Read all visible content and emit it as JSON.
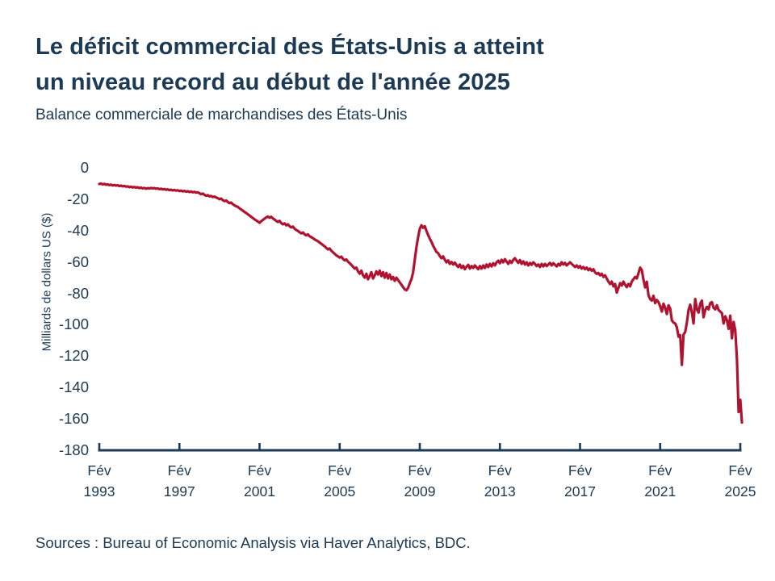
{
  "page": {
    "title_line1": "Le déficit commercial des États-Unis a atteint",
    "title_line2": "un niveau record au début de l'année 2025",
    "subtitle": "Balance commerciale de marchandises des États-Unis",
    "source": "Sources : Bureau of Economic Analysis via Haver Analytics, BDC."
  },
  "colors": {
    "text_navy": "#1c3a54",
    "line_red": "#b01330",
    "axis_navy": "#1c3a54",
    "background": "#ffffff"
  },
  "chart_data": {
    "type": "line",
    "title": "Le déficit commercial des États-Unis a atteint un niveau record au début de l'année 2025",
    "subtitle": "Balance commerciale de marchandises des États-Unis",
    "xlabel": "",
    "ylabel": "Milliards de dollars US ($)",
    "ylim": [
      -180,
      0
    ],
    "y_ticks": [
      0,
      -20,
      -40,
      -60,
      -80,
      -100,
      -120,
      -140,
      -160,
      -180
    ],
    "x_tick_month_label": "Fév",
    "x_tick_years": [
      1993,
      1997,
      2001,
      2005,
      2009,
      2013,
      2017,
      2021,
      2025
    ],
    "grid": false,
    "legend": false,
    "series": [
      {
        "name": "Balance commerciale de marchandises des États-Unis",
        "unit": "milliards de dollars US",
        "start": "1993-02",
        "interval": "monthly",
        "values": [
          -10.3,
          -10.0,
          -10.6,
          -10.2,
          -10.8,
          -10.5,
          -11.0,
          -10.7,
          -11.2,
          -10.9,
          -11.3,
          -11.1,
          -11.6,
          -11.3,
          -11.8,
          -11.5,
          -12.0,
          -11.8,
          -12.3,
          -12.0,
          -12.5,
          -12.2,
          -12.6,
          -12.4,
          -12.9,
          -12.6,
          -13.1,
          -12.8,
          -13.3,
          -12.9,
          -13.2,
          -12.8,
          -13.1,
          -12.9,
          -13.3,
          -13.1,
          -13.6,
          -13.3,
          -13.8,
          -13.5,
          -14.0,
          -13.7,
          -14.2,
          -13.9,
          -14.4,
          -14.1,
          -14.5,
          -14.3,
          -14.8,
          -14.5,
          -15.0,
          -14.7,
          -15.2,
          -14.9,
          -15.4,
          -15.1,
          -15.6,
          -15.3,
          -15.8,
          -15.6,
          -16.2,
          -16.8,
          -16.4,
          -17.2,
          -17.8,
          -17.4,
          -18.2,
          -17.9,
          -18.6,
          -18.3,
          -18.9,
          -19.3,
          -20.0,
          -19.6,
          -20.6,
          -21.2,
          -20.8,
          -21.8,
          -22.5,
          -22.1,
          -23.2,
          -23.9,
          -24.5,
          -24.9,
          -25.8,
          -26.5,
          -27.3,
          -28.1,
          -28.8,
          -29.6,
          -30.4,
          -31.2,
          -32.0,
          -32.8,
          -33.5,
          -34.2,
          -35.0,
          -34.0,
          -33.2,
          -32.4,
          -31.6,
          -31.0,
          -31.8,
          -31.2,
          -32.2,
          -33.0,
          -33.8,
          -34.5,
          -33.8,
          -35.2,
          -36.0,
          -35.4,
          -36.6,
          -36.0,
          -37.2,
          -38.0,
          -37.4,
          -38.8,
          -39.6,
          -40.2,
          -41.0,
          -41.8,
          -41.2,
          -42.4,
          -43.0,
          -42.4,
          -43.6,
          -44.2,
          -44.8,
          -45.6,
          -46.2,
          -46.8,
          -47.6,
          -48.4,
          -49.2,
          -50.0,
          -51.0,
          -52.0,
          -51.4,
          -52.8,
          -53.8,
          -54.8,
          -55.8,
          -56.4,
          -57.2,
          -56.6,
          -58.0,
          -59.0,
          -58.4,
          -59.8,
          -60.8,
          -61.8,
          -63.0,
          -64.2,
          -63.6,
          -66.0,
          -67.5,
          -65.5,
          -68.5,
          -70.0,
          -67.5,
          -71.0,
          -69.0,
          -66.5,
          -70.5,
          -68.5,
          -66.0,
          -68.0,
          -65.5,
          -69.0,
          -66.5,
          -70.0,
          -67.0,
          -70.5,
          -68.0,
          -71.0,
          -69.5,
          -72.0,
          -70.0,
          -71.5,
          -73.0,
          -74.5,
          -76.0,
          -77.5,
          -78.0,
          -76.5,
          -73.5,
          -71.0,
          -66.5,
          -58.5,
          -50.5,
          -44.2,
          -38.8,
          -36.6,
          -38.2,
          -37.2,
          -40.2,
          -42.8,
          -45.2,
          -47.2,
          -49.6,
          -51.6,
          -53.6,
          -54.4,
          -56.2,
          -57.6,
          -56.4,
          -58.6,
          -60.2,
          -59.0,
          -61.2,
          -60.0,
          -61.6,
          -60.4,
          -62.0,
          -63.2,
          -61.6,
          -63.8,
          -62.4,
          -64.6,
          -63.0,
          -61.8,
          -64.2,
          -62.6,
          -63.8,
          -62.2,
          -63.4,
          -64.6,
          -62.6,
          -64.2,
          -62.2,
          -63.8,
          -61.6,
          -63.2,
          -61.2,
          -62.8,
          -60.8,
          -62.2,
          -60.2,
          -59.2,
          -60.8,
          -58.6,
          -60.2,
          -58.2,
          -59.8,
          -61.2,
          -59.2,
          -60.6,
          -58.6,
          -57.6,
          -59.2,
          -60.6,
          -58.8,
          -61.2,
          -59.6,
          -61.6,
          -60.2,
          -62.2,
          -60.6,
          -61.8,
          -60.2,
          -61.2,
          -62.6,
          -61.6,
          -63.2,
          -61.2,
          -62.8,
          -61.2,
          -62.6,
          -61.6,
          -60.6,
          -62.2,
          -60.8,
          -61.8,
          -62.8,
          -61.2,
          -62.2,
          -60.2,
          -61.6,
          -60.6,
          -62.2,
          -61.2,
          -60.2,
          -61.2,
          -62.2,
          -63.2,
          -62.2,
          -63.6,
          -62.6,
          -64.2,
          -63.2,
          -64.6,
          -63.6,
          -65.2,
          -64.2,
          -65.6,
          -64.6,
          -66.6,
          -67.6,
          -67.0,
          -68.5,
          -67.5,
          -69.5,
          -68.5,
          -70.5,
          -72.5,
          -74.0,
          -72.5,
          -75.5,
          -74.0,
          -79.5,
          -76.5,
          -73.5,
          -75.0,
          -72.5,
          -74.5,
          -76.0,
          -74.0,
          -75.5,
          -72.5,
          -71.0,
          -69.5,
          -70.5,
          -67.2,
          -63.6,
          -65.2,
          -71.2,
          -76.2,
          -72.6,
          -81.2,
          -83.6,
          -84.6,
          -81.6,
          -86.2,
          -84.2,
          -85.6,
          -88.2,
          -91.6,
          -86.6,
          -89.2,
          -93.2,
          -87.6,
          -89.6,
          -97.2,
          -98.6,
          -99.2,
          -101.6,
          -107.6,
          -106.6,
          -125.6,
          -106.2,
          -104.6,
          -98.6,
          -90.6,
          -87.2,
          -92.2,
          -99.2,
          -83.6,
          -90.2,
          -92.2,
          -86.6,
          -84.6,
          -95.2,
          -90.6,
          -88.6,
          -90.2,
          -86.2,
          -85.6,
          -89.2,
          -90.2,
          -87.6,
          -90.6,
          -91.6,
          -92.6,
          -99.2,
          -94.6,
          -97.2,
          -102.6,
          -94.2,
          -108.6,
          -98.2,
          -103.6,
          -122.0,
          -155.6,
          -147.8,
          -162.3
        ]
      }
    ]
  }
}
